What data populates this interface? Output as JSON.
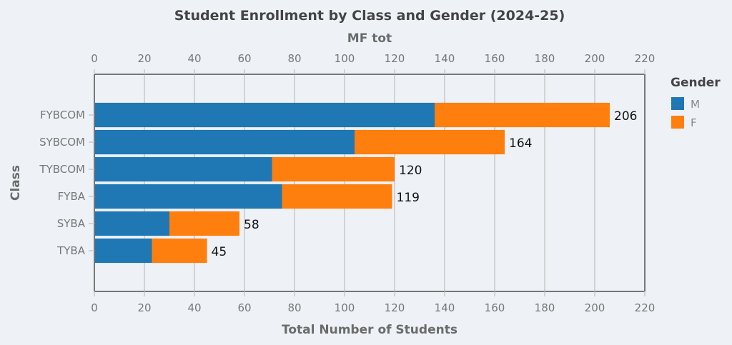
{
  "chart_data": {
    "type": "bar",
    "orientation": "horizontal",
    "stacked": true,
    "title": "Student Enrollment by Class and Gender (2024-25)",
    "xlabel": "Total Number of Students",
    "x2label": "MF tot",
    "ylabel": "Class",
    "xlim": [
      0,
      220
    ],
    "xticks": [
      0,
      20,
      40,
      60,
      80,
      100,
      120,
      140,
      160,
      180,
      200,
      220
    ],
    "grid": true,
    "categories": [
      "FYBCOM",
      "SYBCOM",
      "TYBCOM",
      "FYBA",
      "SYBA",
      "TYBA"
    ],
    "series": [
      {
        "name": "M",
        "color": "#1f77b4",
        "values": [
          136,
          104,
          71,
          75,
          30,
          23
        ]
      },
      {
        "name": "F",
        "color": "#ff7f0e",
        "values": [
          70,
          60,
          49,
          44,
          28,
          22
        ]
      }
    ],
    "totals": [
      206,
      164,
      120,
      119,
      58,
      45
    ],
    "legend": {
      "title": "Gender",
      "position": "right-top",
      "entries": [
        "M",
        "F"
      ]
    }
  }
}
